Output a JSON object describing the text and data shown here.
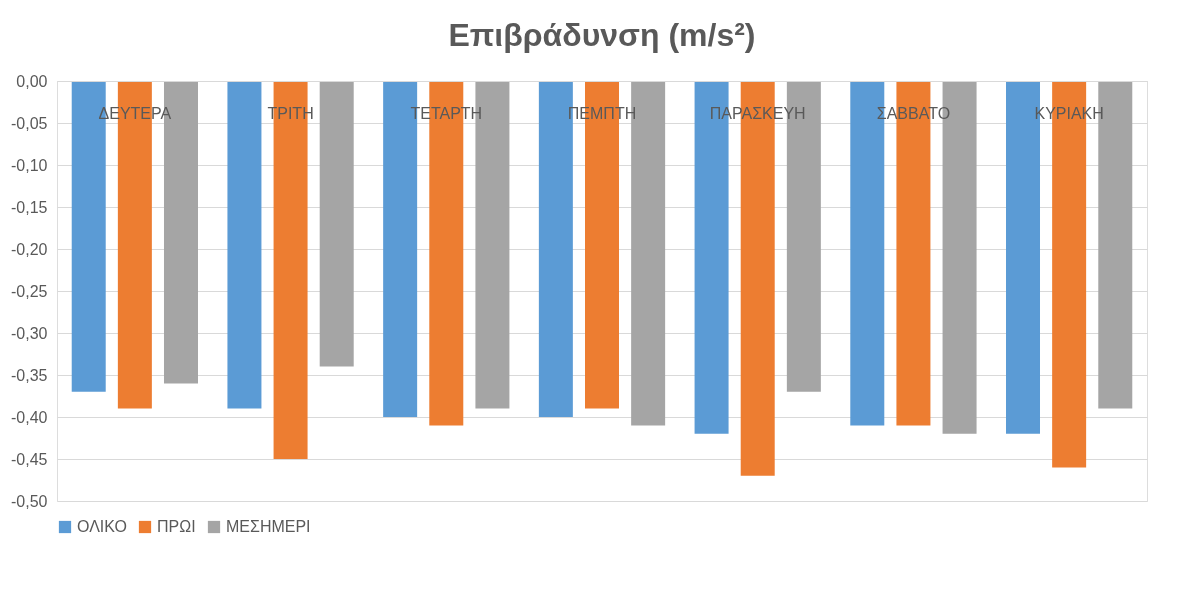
{
  "chart_data": {
    "type": "bar",
    "title": "Επιβράδυνση (m/s²)",
    "categories": [
      "ΔΕΥΤΕΡΑ",
      "ΤΡΙΤΗ",
      "ΤΕΤΑΡΤΗ",
      "ΠΕΜΠΤΗ",
      "ΠΑΡΑΣΚΕΥΗ",
      "ΣΑΒΒΑΤΟ",
      "ΚΥΡΙΑΚΗ"
    ],
    "series": [
      {
        "name": "ΟΛΙΚΟ",
        "color": "#5b9bd5",
        "values": [
          -0.37,
          -0.39,
          -0.4,
          -0.4,
          -0.42,
          -0.41,
          -0.42
        ]
      },
      {
        "name": "ΠΡΩΙ",
        "color": "#ed7d31",
        "values": [
          -0.39,
          -0.45,
          -0.41,
          -0.39,
          -0.47,
          -0.41,
          -0.46
        ]
      },
      {
        "name": "ΜΕΣΗΜΕΡΙ",
        "color": "#a5a5a5",
        "values": [
          -0.36,
          -0.34,
          -0.39,
          -0.41,
          -0.37,
          -0.42,
          -0.39
        ]
      }
    ],
    "ylim": [
      -0.5,
      0
    ],
    "yticks": [
      {
        "value": 0,
        "label": "0,00"
      },
      {
        "value": -0.05,
        "label": "-0,05"
      },
      {
        "value": -0.1,
        "label": "-0,10"
      },
      {
        "value": -0.15,
        "label": "-0,15"
      },
      {
        "value": -0.2,
        "label": "-0,20"
      },
      {
        "value": -0.25,
        "label": "-0,25"
      },
      {
        "value": -0.3,
        "label": "-0,30"
      },
      {
        "value": -0.35,
        "label": "-0,35"
      },
      {
        "value": -0.4,
        "label": "-0,40"
      },
      {
        "value": -0.45,
        "label": "-0,45"
      },
      {
        "value": -0.5,
        "label": "-0,50"
      }
    ],
    "grid": "y",
    "legend": "bottom"
  }
}
